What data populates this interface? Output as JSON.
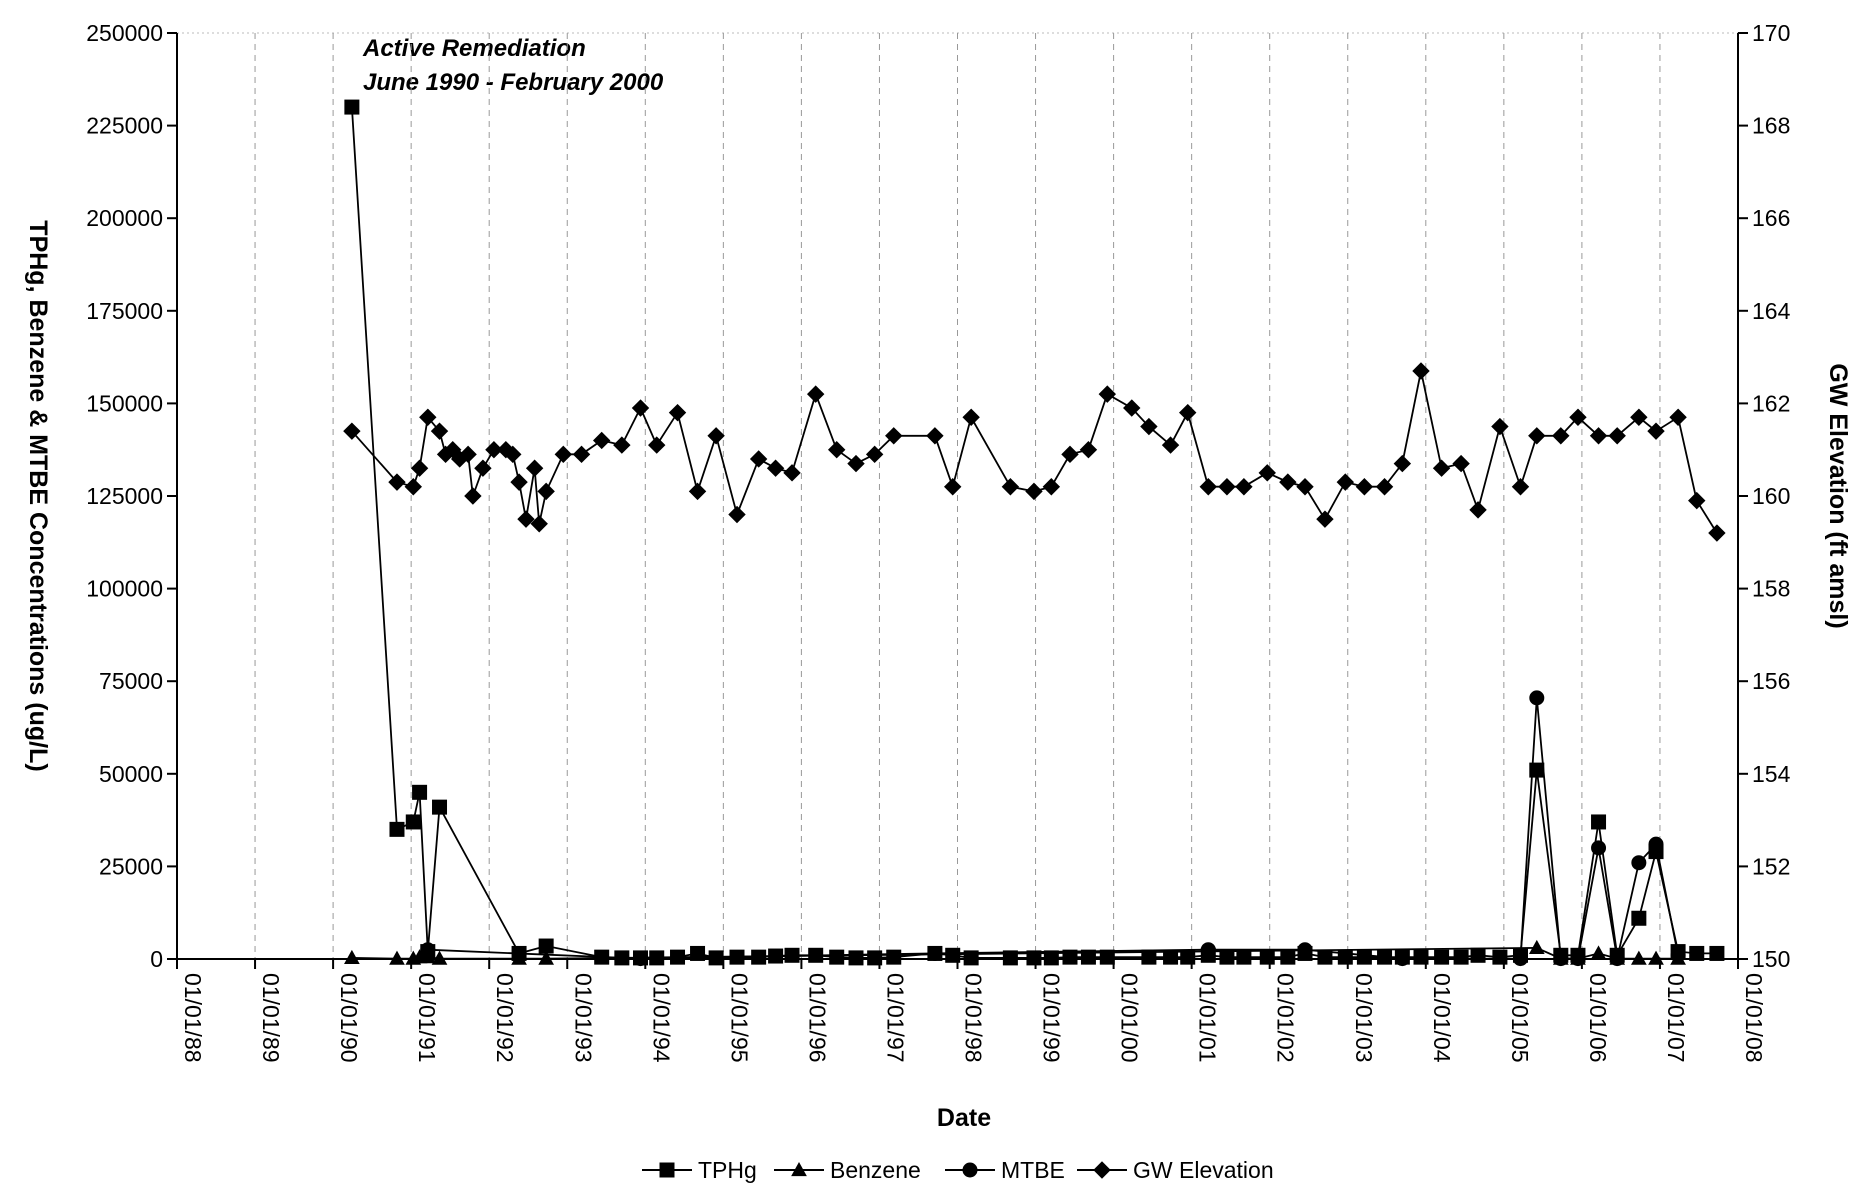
{
  "chart_data": {
    "type": "line",
    "annotations": [
      "Active Remediation",
      "June 1990 - February 2000"
    ],
    "x_label": "Date",
    "y_label": "TPHg, Benzene & MTBE Concentrations (ug/L)",
    "y2_label": "GW Elevation (ft amsl)",
    "xlim": [
      "01/01/88",
      "01/01/08"
    ],
    "xticks": [
      "01/01/88",
      "01/01/89",
      "01/01/90",
      "01/01/91",
      "01/01/92",
      "01/01/93",
      "01/01/94",
      "01/01/95",
      "01/01/96",
      "01/01/97",
      "01/01/98",
      "01/01/99",
      "01/01/00",
      "01/01/01",
      "01/01/02",
      "01/01/03",
      "01/01/04",
      "01/01/05",
      "01/01/06",
      "01/01/07",
      "01/01/08"
    ],
    "ylim": [
      0,
      250000
    ],
    "yticks": [
      0,
      25000,
      50000,
      75000,
      100000,
      125000,
      150000,
      175000,
      200000,
      225000,
      250000
    ],
    "y2lim": [
      150,
      170
    ],
    "y2ticks": [
      150,
      152,
      154,
      156,
      158,
      160,
      162,
      164,
      166,
      168,
      170
    ],
    "grid": "x",
    "legend": "bottom",
    "series": [
      {
        "name": "TPHg",
        "color": "#000000",
        "marker": "square",
        "x": [
          "03/28/90",
          "10/26/90",
          "01/11/91",
          "02/10/91",
          "03/18/91",
          "05/12/91",
          "05/19/92",
          "09/24/92",
          "06/10/93",
          "09/13/93",
          "12/09/93",
          "02/24/94",
          "05/30/94",
          "09/02/94",
          "11/28/94",
          "03/04/95",
          "06/14/95",
          "09/02/95",
          "11/18/95",
          "03/07/96",
          "06/14/96",
          "09/13/96",
          "12/09/96",
          "03/07/97",
          "09/17/97",
          "12/09/97",
          "03/04/98",
          "09/05/98",
          "12/24/98",
          "03/14/99",
          "06/10/99",
          "09/05/99",
          "12/02/99",
          "06/14/00",
          "09/24/00",
          "12/13/00",
          "03/18/01",
          "06/14/01",
          "09/02/01",
          "12/20/01",
          "03/25/02",
          "06/14/02",
          "09/16/02",
          "12/20/02",
          "03/18/03",
          "06/21/03",
          "09/13/03",
          "12/09/03",
          "03/14/04",
          "06/14/04",
          "09/02/04",
          "12/13/04",
          "03/18/05",
          "06/03/05",
          "09/24/05",
          "12/13/05",
          "03/18/06",
          "06/14/06",
          "09/24/06",
          "12/13/06",
          "03/25/07",
          "06/21/07",
          "09/24/07"
        ],
        "values": [
          230000,
          35000,
          37000,
          45000,
          2000,
          41000,
          1500,
          3500,
          500,
          300,
          300,
          300,
          500,
          1500,
          300,
          500,
          500,
          800,
          1000,
          1000,
          500,
          300,
          300,
          500,
          1500,
          1000,
          300,
          300,
          300,
          300,
          500,
          500,
          500,
          500,
          500,
          500,
          1000,
          500,
          500,
          500,
          500,
          1500,
          500,
          500,
          500,
          500,
          500,
          500,
          500,
          500,
          1000,
          500,
          1000,
          51000,
          1000,
          1000,
          37000,
          1000,
          11000,
          29000,
          2000,
          1500,
          1500
        ]
      },
      {
        "name": "Benzene",
        "color": "#000000",
        "marker": "triangle",
        "x": [
          "03/28/90",
          "10/26/90",
          "01/11/91",
          "02/10/91",
          "03/18/91",
          "05/12/91",
          "05/19/92",
          "09/24/92",
          "06/03/05",
          "09/24/05",
          "12/13/05",
          "03/18/06",
          "06/14/06",
          "09/24/06",
          "12/13/06",
          "03/25/07"
        ],
        "values": [
          300,
          100,
          100,
          500,
          500,
          100,
          100,
          100,
          3000,
          100,
          100,
          1500,
          100,
          100,
          100,
          100
        ]
      },
      {
        "name": "MTBE",
        "color": "#000000",
        "marker": "circle",
        "x": [
          "03/18/91",
          "12/09/93",
          "09/17/97",
          "03/18/01",
          "06/14/02",
          "09/13/03",
          "03/18/05",
          "06/03/05",
          "09/24/05",
          "12/13/05",
          "03/18/06",
          "06/14/06",
          "09/24/06",
          "12/13/06",
          "03/25/07"
        ],
        "values": [
          2500,
          100,
          1500,
          2500,
          2500,
          100,
          100,
          70500,
          100,
          100,
          30000,
          100,
          26000,
          31000,
          1000
        ]
      },
      {
        "name": "GW Elevation",
        "color": "#000000",
        "marker": "diamond",
        "axis": "y2",
        "x": [
          "03/28/90",
          "10/26/90",
          "01/11/91",
          "02/10/91",
          "03/18/91",
          "05/12/91",
          "06/10/91",
          "07/13/91",
          "08/15/91",
          "09/24/91",
          "10/16/91",
          "12/02/91",
          "01/23/92",
          "03/18/92",
          "04/20/92",
          "05/19/92",
          "06/21/92",
          "07/31/92",
          "08/22/92",
          "09/24/92",
          "12/13/92",
          "03/07/93",
          "06/10/93",
          "09/13/93",
          "12/09/93",
          "02/24/94",
          "05/30/94",
          "09/02/94",
          "11/28/94",
          "03/04/95",
          "06/14/95",
          "09/02/95",
          "11/18/95",
          "03/07/96",
          "06/14/96",
          "09/13/96",
          "12/09/96",
          "03/07/97",
          "09/17/97",
          "12/09/97",
          "03/04/98",
          "09/05/98",
          "12/24/98",
          "03/14/99",
          "06/10/99",
          "09/05/99",
          "12/02/99",
          "03/25/00",
          "06/14/00",
          "09/24/00",
          "12/13/00",
          "03/18/01",
          "06/14/01",
          "09/02/01",
          "12/20/01",
          "03/25/02",
          "06/14/02",
          "09/16/02",
          "12/20/02",
          "03/18/03",
          "06/21/03",
          "09/13/03",
          "12/09/03",
          "03/14/04",
          "06/14/04",
          "09/02/04",
          "12/13/04",
          "03/18/05",
          "06/03/05",
          "09/24/05",
          "12/13/05",
          "03/18/06",
          "06/14/06",
          "09/24/06",
          "12/13/06",
          "03/25/07",
          "06/21/07",
          "09/24/07"
        ],
        "values": [
          161.4,
          160.3,
          160.2,
          160.6,
          161.7,
          161.4,
          160.9,
          161.0,
          160.8,
          160.9,
          160.0,
          160.6,
          161.0,
          161.0,
          160.9,
          160.3,
          159.5,
          160.6,
          159.4,
          160.1,
          160.9,
          160.9,
          161.2,
          161.1,
          161.9,
          161.1,
          161.8,
          160.1,
          161.3,
          159.6,
          160.8,
          160.6,
          160.5,
          162.2,
          161.0,
          160.7,
          160.9,
          161.3,
          161.3,
          160.2,
          161.7,
          160.2,
          160.1,
          160.2,
          160.9,
          161.0,
          162.2,
          161.9,
          161.5,
          161.1,
          161.8,
          160.2,
          160.2,
          160.2,
          160.5,
          160.3,
          160.2,
          159.5,
          160.3,
          160.2,
          160.2,
          160.7,
          162.7,
          160.6,
          160.7,
          159.7,
          161.5,
          160.2,
          161.3,
          161.3,
          161.7,
          161.3,
          161.3,
          161.7,
          161.4,
          161.7,
          159.9,
          159.2
        ]
      }
    ]
  }
}
